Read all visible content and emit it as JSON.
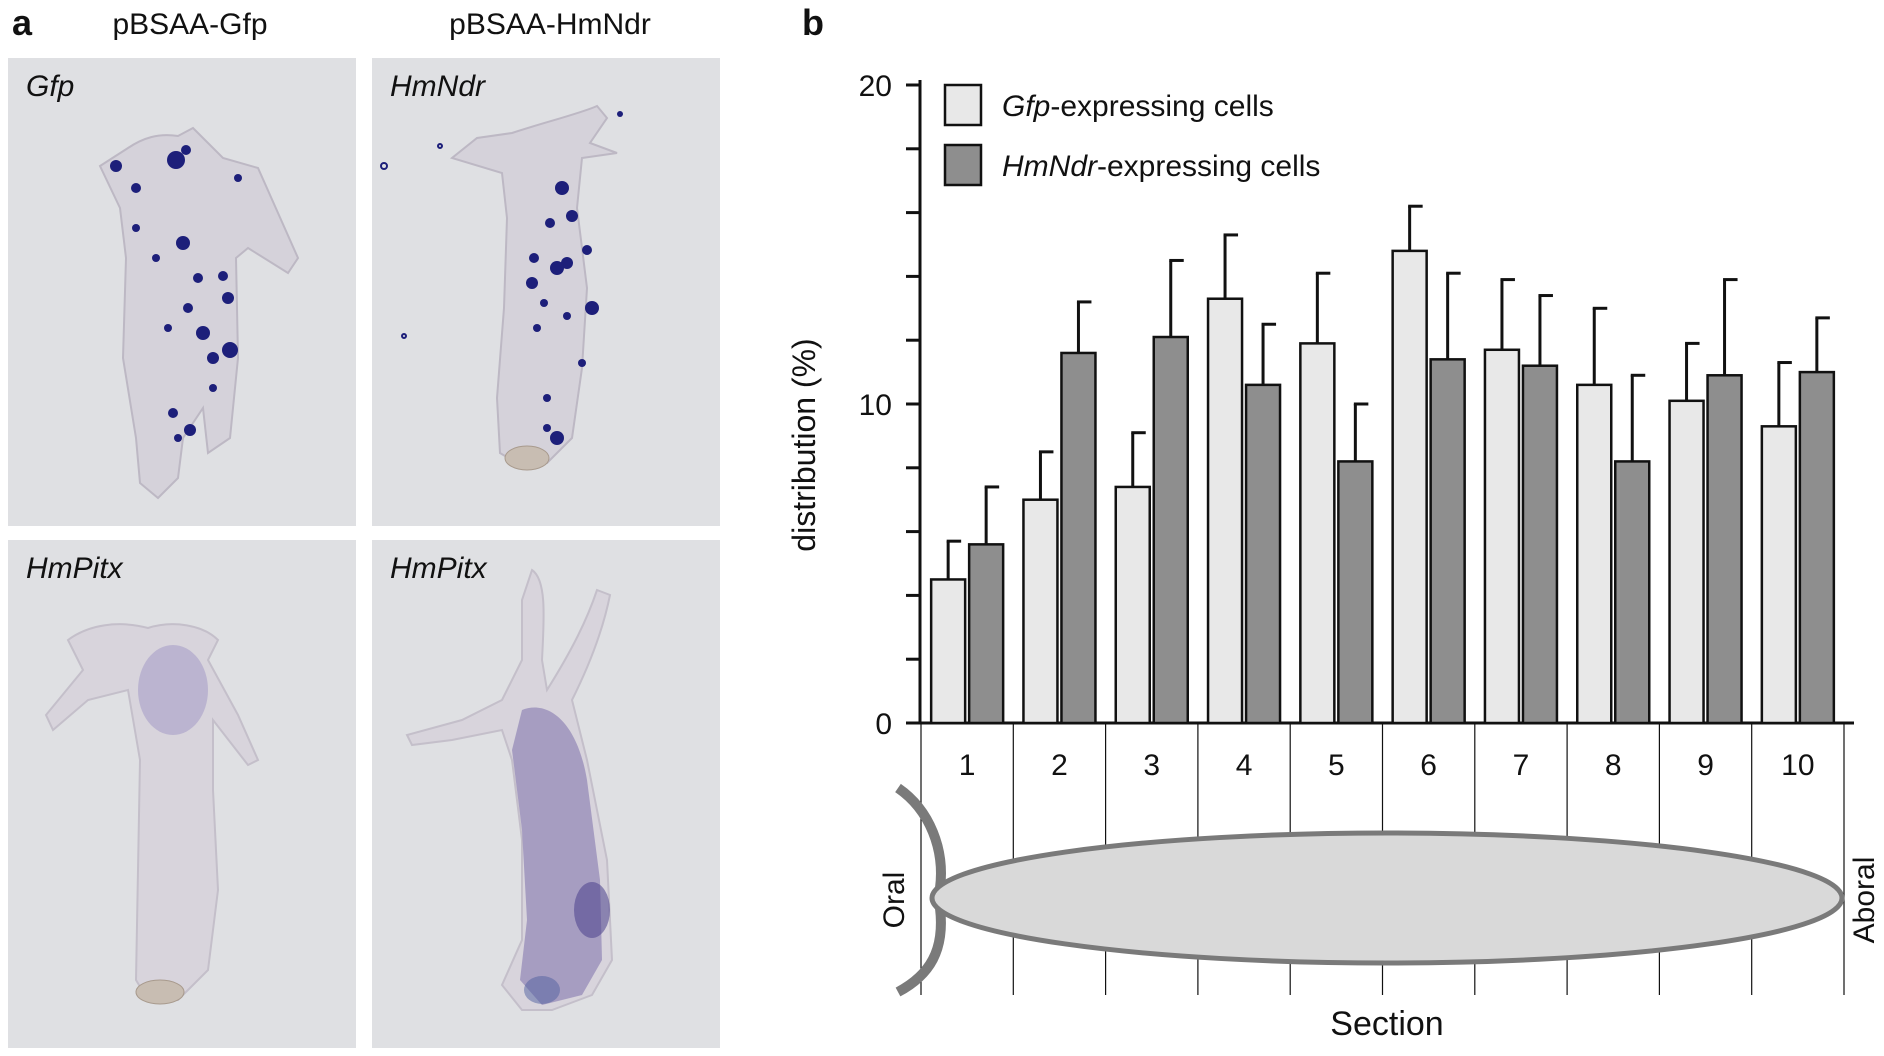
{
  "panel_a": {
    "letter": "a",
    "column_headers": [
      "pBSAA-Gfp",
      "pBSAA-HmNdr"
    ],
    "photos": [
      {
        "label": "Gfp",
        "stain": "Gfp-expressing cells (dark blue dots)"
      },
      {
        "label": "HmNdr",
        "stain": "HmNdr-expressing cells (dark blue dots)"
      },
      {
        "label": "HmPitx",
        "stain": "faint oral staining"
      },
      {
        "label": "HmPitx",
        "stain": "broad purple body staining"
      }
    ]
  },
  "panel_b": {
    "letter": "b",
    "body_labels": {
      "oral": "Oral",
      "aboral": "Aboral"
    }
  },
  "chart_data": {
    "type": "bar",
    "title": "",
    "xlabel": "Section",
    "ylabel": "distribution (%)",
    "ylim": [
      0,
      20
    ],
    "yticks_labeled": [
      0,
      10,
      20
    ],
    "ytick_minor_step": 2,
    "categories": [
      "1",
      "2",
      "3",
      "4",
      "5",
      "6",
      "7",
      "8",
      "9",
      "10"
    ],
    "series": [
      {
        "name": "Gfp-expressing cells",
        "name_italic": "Gfp",
        "name_rest": "-expressing cells",
        "color": "#e8e8e8",
        "values": [
          4.5,
          7.0,
          7.4,
          13.3,
          11.9,
          14.8,
          11.7,
          10.6,
          10.1,
          9.3
        ],
        "errors": [
          1.2,
          1.5,
          1.7,
          2.0,
          2.2,
          1.4,
          2.2,
          2.4,
          1.8,
          2.0
        ]
      },
      {
        "name": "HmNdr-expressing cells",
        "name_italic": "HmNdr",
        "name_rest": "-expressing cells",
        "color": "#8e8e8e",
        "values": [
          5.6,
          11.6,
          12.1,
          10.6,
          8.2,
          11.4,
          11.2,
          8.2,
          10.9,
          11.0
        ],
        "errors": [
          1.8,
          1.6,
          2.4,
          1.9,
          1.8,
          2.7,
          2.2,
          2.7,
          3.0,
          1.7
        ]
      }
    ],
    "legend_position": "top-left"
  },
  "colors": {
    "axis": "#111111",
    "body_fill": "#d9d9d9",
    "body_stroke": "#7a7a7a",
    "stain_dark": "#1d1f7a",
    "stain_light": "#7a6aa8"
  }
}
